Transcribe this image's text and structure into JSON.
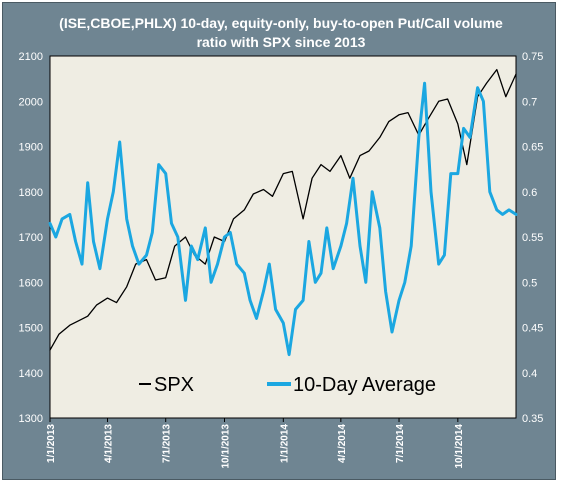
{
  "chart_data": {
    "type": "line",
    "title_lines": [
      "(ISE,CBOE,PHLX) 10-day, equity-only, buy-to-open Put/Call volume",
      "ratio with SPX since 2013"
    ],
    "x_tick_labels": [
      "1/1/2013",
      "4/1/2013",
      "7/1/2013",
      "10/1/2013",
      "1/1/2014",
      "4/1/2014",
      "7/1/2014",
      "10/1/2014"
    ],
    "x_range": [
      "1/1/2013",
      "12/31/2014"
    ],
    "y_left": {
      "ylim": [
        1300,
        2100
      ],
      "ticks": [
        "1300",
        "1400",
        "1500",
        "1600",
        "1700",
        "1800",
        "1900",
        "2000",
        "2100"
      ]
    },
    "y_right": {
      "ylim": [
        0.35,
        0.75
      ],
      "ticks": [
        "0.35",
        "0.4",
        "0.45",
        "0.5",
        "0.55",
        "0.6",
        "0.65",
        "0.7",
        "0.75"
      ]
    },
    "grid": false,
    "legend_placement": "bottom-left",
    "series": [
      {
        "name": "SPX",
        "color": "#000000",
        "axis": "left",
        "x": [
          "1/1/2013",
          "1/15/2013",
          "2/1/2013",
          "2/15/2013",
          "3/1/2013",
          "3/15/2013",
          "4/1/2013",
          "4/15/2013",
          "5/1/2013",
          "5/15/2013",
          "6/1/2013",
          "6/15/2013",
          "7/1/2013",
          "7/15/2013",
          "8/1/2013",
          "8/15/2013",
          "9/1/2013",
          "9/15/2013",
          "10/1/2013",
          "10/15/2013",
          "11/1/2013",
          "11/15/2013",
          "12/1/2013",
          "12/15/2013",
          "1/1/2014",
          "1/15/2014",
          "2/1/2014",
          "2/15/2014",
          "3/1/2014",
          "3/15/2014",
          "4/1/2014",
          "4/15/2014",
          "5/1/2014",
          "5/15/2014",
          "6/1/2014",
          "6/15/2014",
          "7/1/2014",
          "7/15/2014",
          "8/1/2014",
          "8/15/2014",
          "9/1/2014",
          "9/15/2014",
          "10/1/2014",
          "10/15/2014",
          "11/1/2014",
          "11/15/2014",
          "12/1/2014",
          "12/15/2014",
          "12/31/2014"
        ],
        "values": [
          1450,
          1485,
          1505,
          1515,
          1525,
          1550,
          1565,
          1555,
          1590,
          1640,
          1650,
          1605,
          1610,
          1680,
          1700,
          1660,
          1640,
          1700,
          1690,
          1740,
          1760,
          1795,
          1805,
          1790,
          1840,
          1845,
          1740,
          1830,
          1860,
          1845,
          1880,
          1830,
          1880,
          1890,
          1920,
          1955,
          1970,
          1975,
          1925,
          1960,
          2000,
          2005,
          1950,
          1860,
          2010,
          2040,
          2070,
          2010,
          2060
        ]
      },
      {
        "name": "10-Day Average",
        "color": "#1ba7e1",
        "axis": "right",
        "x": [
          "1/1/2013",
          "1/10/2013",
          "1/20/2013",
          "2/1/2013",
          "2/10/2013",
          "2/20/2013",
          "3/1/2013",
          "3/10/2013",
          "3/20/2013",
          "4/1/2013",
          "4/10/2013",
          "4/20/2013",
          "5/1/2013",
          "5/10/2013",
          "5/20/2013",
          "6/1/2013",
          "6/10/2013",
          "6/20/2013",
          "7/1/2013",
          "7/10/2013",
          "7/20/2013",
          "8/1/2013",
          "8/10/2013",
          "8/20/2013",
          "9/1/2013",
          "9/10/2013",
          "9/20/2013",
          "10/1/2013",
          "10/10/2013",
          "10/20/2013",
          "11/1/2013",
          "11/10/2013",
          "11/20/2013",
          "12/1/2013",
          "12/10/2013",
          "12/20/2013",
          "1/1/2014",
          "1/10/2014",
          "1/20/2014",
          "2/1/2014",
          "2/10/2014",
          "2/20/2014",
          "3/1/2014",
          "3/10/2014",
          "3/20/2014",
          "4/1/2014",
          "4/10/2014",
          "4/20/2014",
          "5/1/2014",
          "5/10/2014",
          "5/20/2014",
          "6/1/2014",
          "6/10/2014",
          "6/20/2014",
          "7/1/2014",
          "7/10/2014",
          "7/20/2014",
          "8/1/2014",
          "8/10/2014",
          "8/20/2014",
          "9/1/2014",
          "9/10/2014",
          "9/20/2014",
          "10/1/2014",
          "10/10/2014",
          "10/20/2014",
          "11/1/2014",
          "11/10/2014",
          "11/20/2014",
          "12/1/2014",
          "12/10/2014",
          "12/20/2014",
          "12/31/2014"
        ],
        "values": [
          0.565,
          0.55,
          0.57,
          0.575,
          0.545,
          0.52,
          0.61,
          0.545,
          0.515,
          0.57,
          0.6,
          0.655,
          0.57,
          0.54,
          0.52,
          0.53,
          0.555,
          0.63,
          0.62,
          0.565,
          0.55,
          0.48,
          0.54,
          0.525,
          0.56,
          0.5,
          0.52,
          0.55,
          0.555,
          0.52,
          0.51,
          0.48,
          0.46,
          0.49,
          0.52,
          0.47,
          0.455,
          0.42,
          0.47,
          0.48,
          0.545,
          0.5,
          0.51,
          0.56,
          0.515,
          0.54,
          0.565,
          0.615,
          0.54,
          0.5,
          0.6,
          0.56,
          0.49,
          0.445,
          0.48,
          0.5,
          0.54,
          0.66,
          0.72,
          0.6,
          0.52,
          0.53,
          0.62,
          0.62,
          0.67,
          0.66,
          0.715,
          0.7,
          0.6,
          0.58,
          0.575,
          0.58,
          0.575
        ]
      }
    ]
  }
}
